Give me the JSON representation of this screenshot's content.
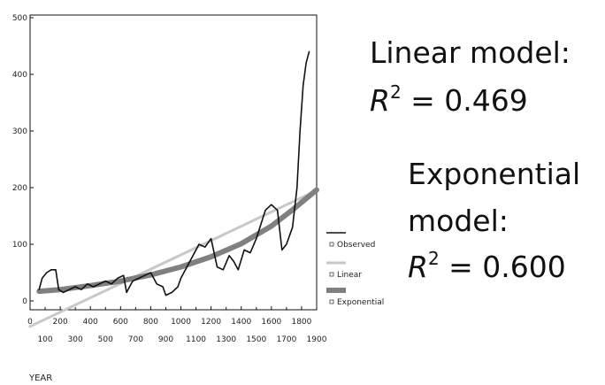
{
  "chart_data": {
    "type": "line",
    "xlabel": "YEAR",
    "ylabel": "",
    "xlim": [
      0,
      1900
    ],
    "ylim": [
      0,
      500
    ],
    "x_ticks_upper": [
      0,
      200,
      400,
      600,
      800,
      1000,
      1200,
      1400,
      1600,
      1800
    ],
    "x_ticks_lower": [
      100,
      300,
      500,
      700,
      900,
      1100,
      1300,
      1500,
      1700,
      1900
    ],
    "y_ticks": [
      0,
      100,
      200,
      300,
      400,
      500
    ],
    "legend_placement": "right",
    "series": [
      {
        "name": "Observed",
        "color": "#111111",
        "x": [
          60,
          80,
          110,
          140,
          170,
          190,
          220,
          260,
          300,
          340,
          380,
          420,
          460,
          500,
          540,
          580,
          620,
          640,
          680,
          720,
          760,
          800,
          840,
          880,
          900,
          940,
          980,
          1000,
          1040,
          1080,
          1120,
          1160,
          1200,
          1240,
          1280,
          1320,
          1350,
          1380,
          1420,
          1460,
          1500,
          1560,
          1600,
          1640,
          1670,
          1700,
          1740,
          1770,
          1790,
          1810,
          1830,
          1850
        ],
        "values": [
          20,
          40,
          50,
          55,
          55,
          20,
          15,
          20,
          25,
          20,
          30,
          25,
          30,
          35,
          30,
          40,
          45,
          15,
          35,
          40,
          45,
          50,
          30,
          25,
          10,
          15,
          25,
          40,
          60,
          80,
          100,
          95,
          110,
          60,
          55,
          80,
          70,
          55,
          90,
          85,
          110,
          160,
          170,
          160,
          90,
          100,
          130,
          200,
          300,
          380,
          420,
          440
        ]
      },
      {
        "name": "Linear",
        "color": "#c8c8c8",
        "x": [
          0,
          1900
        ],
        "values": [
          -45,
          195
        ]
      },
      {
        "name": "Exponential",
        "color": "#808080",
        "x": [
          60,
          200,
          400,
          600,
          800,
          1000,
          1200,
          1400,
          1600,
          1750,
          1900
        ],
        "values": [
          17,
          20,
          27,
          35,
          46,
          60,
          78,
          101,
          132,
          163,
          196
        ]
      }
    ]
  },
  "annotations": {
    "linear_model_title": "Linear model:",
    "linear_r_symbol": "R",
    "linear_r_exponent": "2",
    "linear_r_value": " = 0.469",
    "exp_model_title_1": "Exponential",
    "exp_model_title_2": "model:",
    "exp_r_symbol": "R",
    "exp_r_exponent": "2",
    "exp_r_value": " = 0.600"
  }
}
